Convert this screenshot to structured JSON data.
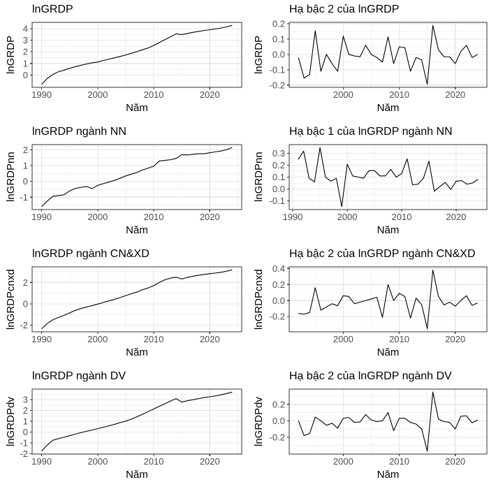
{
  "page": {
    "background": "#ffffff"
  },
  "style": {
    "grid_major_color": "#e5e5e5",
    "grid_minor_color": "#efefef",
    "panel_border_color": "#333333",
    "panel_background": "#ffffff",
    "tick_mark_color": "#333333",
    "tick_label_color": "#4d4d4d",
    "line_color": "#000000",
    "title_color": "#000000"
  },
  "chart_data": [
    {
      "type": "line",
      "title": "lnGRDP",
      "xlabel": "Năm",
      "ylabel": "lnGRDP",
      "x_start": 1990,
      "values": [
        -0.8,
        -0.3,
        0.05,
        0.28,
        0.42,
        0.58,
        0.72,
        0.84,
        0.95,
        1.05,
        1.12,
        1.25,
        1.37,
        1.48,
        1.6,
        1.73,
        1.87,
        2.02,
        2.18,
        2.33,
        2.55,
        2.8,
        3.05,
        3.3,
        3.55,
        3.48,
        3.58,
        3.68,
        3.76,
        3.84,
        3.9,
        3.97,
        4.05,
        4.15,
        4.28
      ],
      "xlim": [
        1988.3,
        2025.7
      ],
      "ylim": [
        -1.06,
        4.54
      ],
      "xticks": [
        1990,
        2000,
        2010,
        2020
      ],
      "xtick_labels": [
        "1990",
        "2000",
        "2010",
        "2020"
      ],
      "xticks_minor": [
        1995,
        2005,
        2015,
        2025
      ],
      "yticks": [
        0,
        1,
        2,
        3,
        4
      ],
      "ytick_labels": [
        "0",
        "1",
        "2",
        "3",
        "4"
      ],
      "yticks_minor": [
        -0.5,
        0.5,
        1.5,
        2.5,
        3.5,
        4.5
      ],
      "grid": true,
      "legend": "none"
    },
    {
      "type": "line",
      "title": "Hạ bậc 2 của lnGRDP",
      "xlabel": "Năm",
      "ylabel": "lnGRDP",
      "x_start": 1992,
      "values": [
        -0.02,
        -0.155,
        -0.13,
        0.155,
        -0.11,
        0.0,
        -0.06,
        -0.11,
        0.12,
        0.0,
        -0.01,
        -0.015,
        0.06,
        0.0,
        -0.02,
        -0.05,
        0.115,
        -0.06,
        0.05,
        0.045,
        -0.11,
        -0.02,
        -0.035,
        -0.195,
        0.19,
        0.03,
        -0.015,
        -0.015,
        -0.06,
        0.02,
        0.06,
        -0.02,
        0.0
      ],
      "xlim": [
        1990.35,
        2025.65
      ],
      "ylim": [
        -0.215,
        0.21
      ],
      "xticks": [
        2000,
        2010,
        2020
      ],
      "xtick_labels": [
        "2000",
        "2010",
        "2020"
      ],
      "xticks_minor": [
        1995,
        2005,
        2015,
        2025
      ],
      "yticks": [
        -0.2,
        -0.1,
        0,
        0.1,
        0.2
      ],
      "ytick_labels": [
        "-0.2",
        "-0.1",
        "0.0",
        "0.1",
        "0.2"
      ],
      "yticks_minor": [
        -0.15,
        -0.05,
        0.05,
        0.15
      ],
      "grid": true,
      "legend": "none"
    },
    {
      "type": "line",
      "title": "lnGRDP ngành NN",
      "xlabel": "Năm",
      "ylabel": "lnGRDPnn",
      "x_start": 1990,
      "values": [
        -1.6,
        -1.25,
        -0.95,
        -0.9,
        -0.85,
        -0.6,
        -0.45,
        -0.38,
        -0.32,
        -0.45,
        -0.25,
        -0.14,
        -0.04,
        0.06,
        0.2,
        0.35,
        0.46,
        0.57,
        0.73,
        0.84,
        0.97,
        1.3,
        1.34,
        1.38,
        1.46,
        1.7,
        1.68,
        1.72,
        1.76,
        1.76,
        1.82,
        1.88,
        1.93,
        2.02,
        2.15
      ],
      "xlim": [
        1988.3,
        2025.7
      ],
      "ylim": [
        -1.79,
        2.34
      ],
      "xticks": [
        1990,
        2000,
        2010,
        2020
      ],
      "xtick_labels": [
        "1990",
        "2000",
        "2010",
        "2020"
      ],
      "xticks_minor": [
        1995,
        2005,
        2015,
        2025
      ],
      "yticks": [
        -1,
        0,
        1,
        2
      ],
      "ytick_labels": [
        "-1",
        "0",
        "1",
        "2"
      ],
      "yticks_minor": [
        -1.5,
        -0.5,
        0.5,
        1.5
      ],
      "grid": true,
      "legend": "none"
    },
    {
      "type": "line",
      "title": "Hạ bậc 1 của lnGRDP ngành NN",
      "xlabel": "Năm",
      "ylabel": "lnGRDPnn",
      "x_start": 1991,
      "values": [
        0.25,
        0.32,
        0.09,
        0.06,
        0.35,
        0.1,
        0.065,
        0.09,
        -0.15,
        0.21,
        0.11,
        0.1,
        0.09,
        0.155,
        0.155,
        0.11,
        0.11,
        0.165,
        0.1,
        0.13,
        0.255,
        0.035,
        0.04,
        0.09,
        0.235,
        -0.02,
        0.02,
        0.055,
        -0.005,
        0.065,
        0.07,
        0.04,
        0.05,
        0.08
      ],
      "xlim": [
        1989.35,
        2025.65
      ],
      "ylim": [
        -0.175,
        0.375
      ],
      "xticks": [
        1990,
        2000,
        2010,
        2020
      ],
      "xtick_labels": [
        "1990",
        "2000",
        "2010",
        "2020"
      ],
      "xticks_minor": [
        1995,
        2005,
        2015,
        2025
      ],
      "yticks": [
        -0.1,
        0,
        0.1,
        0.2,
        0.3
      ],
      "ytick_labels": [
        "-0.1",
        "0.0",
        "0.1",
        "0.2",
        "0.3"
      ],
      "yticks_minor": [
        -0.15,
        -0.05,
        0.05,
        0.15,
        0.25,
        0.35
      ],
      "grid": true,
      "legend": "none"
    },
    {
      "type": "line",
      "title": "lnGRDP ngành CN&XD",
      "xlabel": "Năm",
      "ylabel": "lnGRDPcnxd",
      "x_start": 1990,
      "values": [
        -2.35,
        -1.85,
        -1.5,
        -1.28,
        -1.08,
        -0.85,
        -0.62,
        -0.45,
        -0.3,
        -0.18,
        -0.03,
        0.12,
        0.27,
        0.42,
        0.58,
        0.76,
        0.95,
        1.1,
        1.32,
        1.48,
        1.7,
        2.0,
        2.25,
        2.4,
        2.5,
        2.32,
        2.48,
        2.58,
        2.67,
        2.75,
        2.82,
        2.88,
        2.95,
        3.05,
        3.18
      ],
      "xlim": [
        1988.3,
        2025.7
      ],
      "ylim": [
        -2.63,
        3.46
      ],
      "xticks": [
        1990,
        2000,
        2010,
        2020
      ],
      "xtick_labels": [
        "1990",
        "2000",
        "2010",
        "2020"
      ],
      "xticks_minor": [
        1995,
        2005,
        2015,
        2025
      ],
      "yticks": [
        -2,
        0,
        2
      ],
      "ytick_labels": [
        "-2",
        "0",
        "2"
      ],
      "yticks_minor": [
        -1,
        1,
        3
      ],
      "grid": true,
      "legend": "none"
    },
    {
      "type": "line",
      "title": "Hạ bậc 2 của lnGRDP ngành CN&XD",
      "xlabel": "Năm",
      "ylabel": "lnGRDPcnxd",
      "x_start": 1992,
      "values": [
        -0.16,
        -0.17,
        -0.15,
        0.16,
        -0.12,
        -0.08,
        -0.04,
        -0.065,
        0.06,
        0.05,
        -0.04,
        -0.02,
        0.0,
        0.02,
        0.04,
        -0.21,
        0.2,
        0.0,
        0.09,
        0.05,
        -0.22,
        0.03,
        -0.05,
        -0.35,
        0.38,
        0.05,
        -0.055,
        -0.02,
        -0.07,
        0.0,
        0.06,
        -0.06,
        -0.03
      ],
      "xlim": [
        1990.35,
        2025.65
      ],
      "ylim": [
        -0.39,
        0.42
      ],
      "xticks": [
        2000,
        2010,
        2020
      ],
      "xtick_labels": [
        "2000",
        "2010",
        "2020"
      ],
      "xticks_minor": [
        1995,
        2005,
        2015,
        2025
      ],
      "yticks": [
        -0.2,
        0,
        0.2,
        0.4
      ],
      "ytick_labels": [
        "-0.2",
        "0.0",
        "0.2",
        "0.4"
      ],
      "yticks_minor": [
        -0.3,
        -0.1,
        0.1,
        0.3
      ],
      "grid": true,
      "legend": "none"
    },
    {
      "type": "line",
      "title": "lnGRDP ngành DV",
      "xlabel": "Năm",
      "ylabel": "lnGRDPdv",
      "x_start": 1990,
      "values": [
        -1.75,
        -1.2,
        -0.75,
        -0.6,
        -0.47,
        -0.33,
        -0.18,
        -0.05,
        0.08,
        0.2,
        0.32,
        0.45,
        0.58,
        0.72,
        0.88,
        1.02,
        1.2,
        1.42,
        1.65,
        1.9,
        2.15,
        2.4,
        2.62,
        2.88,
        3.1,
        2.78,
        2.9,
        3.0,
        3.1,
        3.2,
        3.27,
        3.35,
        3.45,
        3.57,
        3.7
      ],
      "xlim": [
        1988.3,
        2025.7
      ],
      "ylim": [
        -2.03,
        3.98
      ],
      "xticks": [
        1990,
        2000,
        2010,
        2020
      ],
      "xtick_labels": [
        "1990",
        "2000",
        "2010",
        "2020"
      ],
      "xticks_minor": [
        1995,
        2005,
        2015,
        2025
      ],
      "yticks": [
        -2,
        -1,
        0,
        1,
        2,
        3
      ],
      "ytick_labels": [
        "-2",
        "-1",
        "0",
        "1",
        "2",
        "3"
      ],
      "yticks_minor": [
        -1.5,
        -0.5,
        0.5,
        1.5,
        2.5,
        3.5
      ],
      "grid": true,
      "legend": "none"
    },
    {
      "type": "line",
      "title": "Hạ bậc 2 của lnGRDP ngành DV",
      "xlabel": "Năm",
      "ylabel": "lnGRDPdv",
      "x_start": 1992,
      "values": [
        0.0,
        -0.18,
        -0.155,
        0.045,
        0.0,
        -0.055,
        -0.03,
        -0.09,
        0.03,
        0.04,
        -0.02,
        -0.015,
        0.075,
        0.01,
        -0.01,
        0.0,
        0.1,
        -0.12,
        0.03,
        0.03,
        -0.02,
        -0.04,
        -0.1,
        -0.37,
        0.35,
        0.02,
        -0.01,
        -0.02,
        -0.1,
        0.055,
        0.06,
        -0.025,
        0.01
      ],
      "xlim": [
        1990.35,
        2025.65
      ],
      "ylim": [
        -0.405,
        0.385
      ],
      "xticks": [
        2000,
        2010,
        2020
      ],
      "xtick_labels": [
        "2000",
        "2010",
        "2020"
      ],
      "xticks_minor": [
        1995,
        2005,
        2015,
        2025
      ],
      "yticks": [
        -0.2,
        0,
        0.2
      ],
      "ytick_labels": [
        "-0.2",
        "0.0",
        "0.2"
      ],
      "yticks_minor": [
        -0.3,
        -0.1,
        0.1,
        0.3
      ],
      "grid": true,
      "legend": "none"
    }
  ]
}
